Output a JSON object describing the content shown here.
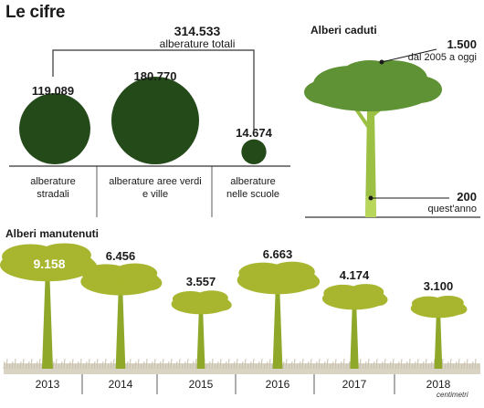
{
  "title": "Le cifre",
  "colors": {
    "dark_green": "#244a1a",
    "tree_green": "#a8b62f",
    "trunk_green": "#8fa82a",
    "fallen_canopy": "#5e9234",
    "fallen_trunk": "#9bc043",
    "grass": "#d9d3c4",
    "line": "#333333"
  },
  "credit": "centimetri",
  "chart_data": [
    {
      "type": "bubble",
      "title": "",
      "total": {
        "value": "314.533",
        "label": "alberature totali"
      },
      "categories": [
        "alberature stradali",
        "alberature aree verdi e ville",
        "alberature nelle scuole"
      ],
      "values": [
        119089,
        180770,
        14674
      ],
      "value_labels": [
        "119.089",
        "180.770",
        "14.674"
      ]
    },
    {
      "type": "annotated-illustration",
      "title": "Alberi caduti",
      "points": [
        {
          "value": 1500,
          "value_label": "1.500",
          "label": "dal 2005 a oggi"
        },
        {
          "value": 200,
          "value_label": "200",
          "label": "quest'anno"
        }
      ]
    },
    {
      "type": "bar",
      "title": "Alberi manutenuti",
      "categories": [
        "2013",
        "2014",
        "2015",
        "2016",
        "2017",
        "2018"
      ],
      "values": [
        9158,
        6456,
        3557,
        6663,
        4174,
        3100
      ],
      "value_labels": [
        "9.158",
        "6.456",
        "3.557",
        "6.663",
        "4.174",
        "3.100"
      ]
    }
  ]
}
